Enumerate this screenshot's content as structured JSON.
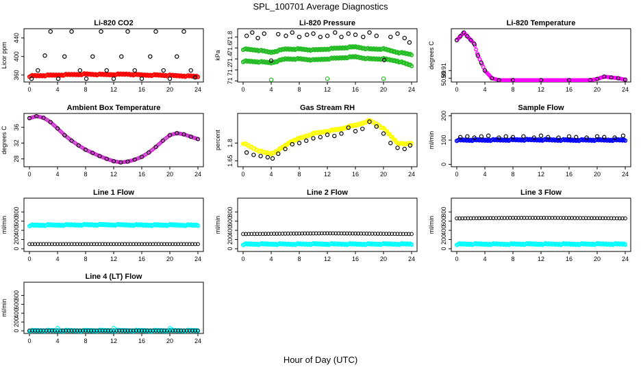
{
  "figure": {
    "title": "SPL_100701  Average Diagnostics",
    "xlabel": "Hour of Day (UTC)"
  },
  "colors": {
    "black": "#000000",
    "red": "#ff0000",
    "green": "#22bb22",
    "magenta": "#ff00ff",
    "purple": "#cc33cc",
    "yellow": "#ffff00",
    "blue": "#0000ff",
    "cyan": "#00ffff"
  },
  "chart_data": [
    {
      "type": "scatter",
      "title": "Li-820 CO2",
      "ylabel": "Licor ppm",
      "xlim": [
        0,
        24
      ],
      "ylim": [
        345,
        460
      ],
      "xticks": [
        0,
        4,
        8,
        12,
        16,
        20,
        24
      ],
      "yticks": [
        360,
        400,
        440
      ],
      "series": [
        {
          "color": "red",
          "style": "band",
          "x": [
            0,
            2,
            4,
            6,
            8,
            10,
            12,
            14,
            16,
            18,
            20,
            22,
            24
          ],
          "y": [
            358,
            359,
            360,
            361,
            362,
            361,
            361,
            362,
            360,
            360,
            359,
            358,
            357
          ]
        },
        {
          "color": "black",
          "style": "points",
          "x": [
            0.3,
            1.2,
            2.2,
            3.0,
            4.1,
            5.0,
            6.0,
            7.2,
            8.1,
            9.0,
            10.2,
            11.0,
            12.0,
            13.1,
            14.0,
            15.0,
            16.0,
            17.2,
            18.0,
            19.1,
            20.0,
            21.0,
            22.0,
            23.0,
            23.6
          ],
          "y": [
            352,
            370,
            402,
            454,
            352,
            400,
            454,
            370,
            352,
            400,
            454,
            370,
            352,
            400,
            454,
            370,
            352,
            400,
            454,
            370,
            352,
            400,
            454,
            370,
            355
          ]
        }
      ]
    },
    {
      "type": "scatter",
      "title": "Li-820 Pressure",
      "ylabel": "kPa",
      "xlim": [
        0,
        24
      ],
      "ylim": [
        70.98,
        71.95
      ],
      "xticks": [
        0,
        4,
        8,
        12,
        16,
        20,
        24
      ],
      "yticks": [
        71.0,
        71.2,
        71.4,
        71.6,
        71.8
      ],
      "series": [
        {
          "color": "green",
          "style": "band",
          "x": [
            0,
            2,
            4,
            6,
            8,
            10,
            12,
            14,
            16,
            18,
            20,
            22,
            24
          ],
          "y": [
            71.36,
            71.35,
            71.33,
            71.4,
            71.4,
            71.38,
            71.4,
            71.42,
            71.44,
            71.4,
            71.4,
            71.36,
            71.28
          ]
        },
        {
          "color": "green",
          "style": "band",
          "x": [
            0,
            2,
            4,
            6,
            8,
            10,
            12,
            14,
            16,
            18,
            20,
            22,
            24
          ],
          "y": [
            71.58,
            71.56,
            71.52,
            71.58,
            71.58,
            71.56,
            71.58,
            71.6,
            71.62,
            71.58,
            71.58,
            71.52,
            71.48
          ]
        },
        {
          "color": "black",
          "style": "points",
          "x": [
            0.5,
            1.3,
            2.1,
            3.0,
            4.0,
            5.0,
            6.1,
            7.0,
            8.0,
            9.1,
            10.0,
            11.0,
            12.0,
            13.1,
            14.0,
            15.0,
            16.0,
            17.1,
            18.0,
            19.0,
            20.1,
            21.0,
            22.0,
            23.0,
            23.7
          ],
          "y": [
            71.82,
            71.88,
            71.78,
            71.86,
            71.37,
            71.85,
            71.82,
            71.88,
            71.8,
            71.84,
            71.86,
            71.8,
            71.82,
            71.88,
            71.8,
            71.86,
            71.84,
            71.8,
            71.88,
            71.82,
            71.38,
            71.8,
            71.86,
            71.78,
            71.7
          ]
        },
        {
          "color": "green",
          "style": "points",
          "x": [
            4.0,
            12.0,
            20.0
          ],
          "y": [
            71.02,
            71.04,
            71.04
          ]
        }
      ]
    },
    {
      "type": "scatter",
      "title": "Li-820 Temperature",
      "ylabel": "degrees C",
      "xlim": [
        0,
        24
      ],
      "ylim": [
        50.88,
        51.02
      ],
      "xticks": [
        0,
        4,
        8,
        12,
        16,
        20,
        24
      ],
      "yticks": [
        50.89,
        50.91
      ],
      "extra_ytick_labels": [
        "50.99"
      ],
      "series": [
        {
          "color": "magenta",
          "style": "line",
          "x": [
            0,
            0.5,
            1.0,
            1.5,
            2.0,
            2.5,
            3.0,
            3.5,
            4.0,
            5.0,
            6.0,
            8.0,
            12.0,
            16.0,
            19.0,
            20.0,
            21.0,
            22.0,
            23.0,
            24.0
          ],
          "y": [
            50.99,
            51.0,
            51.01,
            51.0,
            50.99,
            50.98,
            50.95,
            50.93,
            50.91,
            50.89,
            50.885,
            50.885,
            50.885,
            50.885,
            50.885,
            50.888,
            50.894,
            50.892,
            50.89,
            50.886
          ]
        }
      ]
    },
    {
      "type": "scatter",
      "title": "Ambient Box Temperature",
      "ylabel": "degrees C",
      "xlim": [
        0,
        24
      ],
      "ylim": [
        26,
        39.5
      ],
      "xticks": [
        0,
        4,
        8,
        12,
        16,
        20,
        24
      ],
      "yticks": [
        28,
        32,
        36
      ],
      "series": [
        {
          "color": "purple",
          "style": "line",
          "x": [
            0,
            1,
            2,
            3,
            4,
            5,
            6,
            7,
            8,
            9,
            10,
            11,
            12,
            13,
            14,
            15,
            16,
            17,
            18,
            19,
            20,
            21,
            22,
            23,
            24
          ],
          "y": [
            38.3,
            38.8,
            38.4,
            37.3,
            35.7,
            34.0,
            32.6,
            31.4,
            30.3,
            29.5,
            28.7,
            28.0,
            27.4,
            27.1,
            27.3,
            27.8,
            28.5,
            29.6,
            31.0,
            32.6,
            34.0,
            34.5,
            34.2,
            33.6,
            33.0
          ]
        }
      ]
    },
    {
      "type": "scatter",
      "title": "Gas Stream RH",
      "ylabel": "percent",
      "xlim": [
        0,
        24
      ],
      "ylim": [
        1.6,
        2.05
      ],
      "xticks": [
        0,
        4,
        8,
        12,
        16,
        20,
        24
      ],
      "yticks": [
        1.65,
        1.8
      ],
      "series": [
        {
          "color": "yellow",
          "style": "band",
          "x": [
            0,
            1,
            2,
            3,
            4,
            5,
            6,
            7,
            8,
            9,
            10,
            11,
            12,
            13,
            14,
            15,
            16,
            17,
            18,
            19,
            20,
            21,
            22,
            23,
            24
          ],
          "y": [
            1.8,
            1.77,
            1.74,
            1.72,
            1.71,
            1.74,
            1.78,
            1.82,
            1.84,
            1.86,
            1.88,
            1.89,
            1.9,
            1.91,
            1.92,
            1.94,
            1.95,
            1.97,
            1.99,
            1.96,
            1.92,
            1.86,
            1.8,
            1.79,
            1.8
          ]
        },
        {
          "color": "black",
          "style": "points",
          "x": [
            0.5,
            1.5,
            2.5,
            3.5,
            4.2,
            5.0,
            6.0,
            7.0,
            8.0,
            9.0,
            10.0,
            11.0,
            12.0,
            13.0,
            14.0,
            15.0,
            16.0,
            17.0,
            18.0,
            19.0,
            20.0,
            21.0,
            22.0,
            23.0,
            23.8
          ],
          "y": [
            1.72,
            1.7,
            1.69,
            1.68,
            1.67,
            1.71,
            1.75,
            1.79,
            1.8,
            1.82,
            1.84,
            1.85,
            1.87,
            1.86,
            1.88,
            1.93,
            1.9,
            1.92,
            1.98,
            1.94,
            1.88,
            1.8,
            1.76,
            1.75,
            1.78
          ]
        }
      ]
    },
    {
      "type": "scatter",
      "title": "Sample Flow",
      "ylabel": "ml/min",
      "xlim": [
        0,
        24
      ],
      "ylim": [
        -10,
        210
      ],
      "xticks": [
        0,
        4,
        8,
        12,
        16,
        20,
        24
      ],
      "yticks": [
        0,
        100,
        200
      ],
      "series": [
        {
          "color": "blue",
          "style": "band",
          "x": [
            0,
            4,
            8,
            12,
            16,
            20,
            24
          ],
          "y": [
            100,
            100,
            101,
            101,
            100,
            100,
            100
          ]
        },
        {
          "color": "black",
          "style": "points",
          "x": [
            0.5,
            1.5,
            2.5,
            3.5,
            4.5,
            6.0,
            7.0,
            8.0,
            9.5,
            11.0,
            12.0,
            13.0,
            14.5,
            16.0,
            17.0,
            18.5,
            20.0,
            21.0,
            22.5,
            23.7
          ],
          "y": [
            112,
            115,
            110,
            115,
            118,
            110,
            115,
            112,
            115,
            110,
            118,
            112,
            110,
            115,
            112,
            110,
            115,
            112,
            110,
            118
          ]
        }
      ]
    },
    {
      "type": "scatter",
      "title": "Line 1 Flow",
      "ylabel": "ml/min",
      "xlim": [
        0,
        24
      ],
      "ylim": [
        -60,
        1100
      ],
      "xticks": [
        0,
        4,
        8,
        12,
        16,
        20,
        24
      ],
      "yticks": [
        0,
        200,
        400,
        600,
        800
      ],
      "series": [
        {
          "color": "cyan",
          "style": "band",
          "x": [
            0,
            4,
            8,
            12,
            16,
            20,
            24
          ],
          "y": [
            510,
            515,
            520,
            520,
            515,
            515,
            510
          ]
        },
        {
          "color": "black",
          "style": "points",
          "x": [
            0,
            4,
            8,
            12,
            16,
            20,
            24
          ],
          "y": [
            100,
            100,
            100,
            100,
            100,
            100,
            100
          ]
        }
      ]
    },
    {
      "type": "scatter",
      "title": "Line 2 Flow",
      "ylabel": "ml/min",
      "xlim": [
        0,
        24
      ],
      "ylim": [
        -60,
        1100
      ],
      "xticks": [
        0,
        4,
        8,
        12,
        16,
        20,
        24
      ],
      "yticks": [
        0,
        200,
        400,
        600,
        800
      ],
      "series": [
        {
          "color": "cyan",
          "style": "band",
          "x": [
            0,
            4,
            8,
            12,
            16,
            20,
            24
          ],
          "y": [
            100,
            100,
            100,
            100,
            100,
            100,
            100
          ]
        },
        {
          "color": "black",
          "style": "points",
          "x": [
            0,
            4,
            8,
            12,
            16,
            20,
            24
          ],
          "y": [
            320,
            325,
            330,
            335,
            330,
            325,
            320
          ]
        }
      ]
    },
    {
      "type": "scatter",
      "title": "Line 3 Flow",
      "ylabel": "ml/min",
      "xlim": [
        0,
        24
      ],
      "ylim": [
        -60,
        1100
      ],
      "xticks": [
        0,
        4,
        8,
        12,
        16,
        20,
        24
      ],
      "yticks": [
        0,
        200,
        400,
        600,
        800
      ],
      "series": [
        {
          "color": "cyan",
          "style": "band",
          "x": [
            0,
            4,
            8,
            12,
            16,
            20,
            24
          ],
          "y": [
            100,
            100,
            100,
            100,
            100,
            100,
            100
          ]
        },
        {
          "color": "black",
          "style": "points",
          "x": [
            0,
            4,
            8,
            12,
            16,
            20,
            24
          ],
          "y": [
            660,
            665,
            670,
            670,
            668,
            665,
            660
          ]
        }
      ]
    },
    {
      "type": "scatter",
      "title": "Line 4 (LT) Flow",
      "ylabel": "ml/min",
      "xlim": [
        0,
        24
      ],
      "ylim": [
        -60,
        1100
      ],
      "xticks": [
        0,
        4,
        8,
        12,
        16,
        20,
        24
      ],
      "yticks": [
        0,
        200,
        400,
        600,
        800
      ],
      "series": [
        {
          "color": "cyan",
          "style": "band",
          "x": [
            0,
            4,
            8,
            12,
            16,
            20,
            24
          ],
          "y": [
            5,
            5,
            5,
            5,
            5,
            5,
            5
          ]
        },
        {
          "color": "black",
          "style": "points",
          "x": [
            0,
            4,
            8,
            12,
            16,
            20,
            24
          ],
          "y": [
            5,
            5,
            5,
            5,
            5,
            5,
            5
          ]
        },
        {
          "color": "cyan",
          "style": "points",
          "x": [
            4,
            12,
            20
          ],
          "y": [
            60,
            60,
            60
          ]
        }
      ]
    }
  ]
}
